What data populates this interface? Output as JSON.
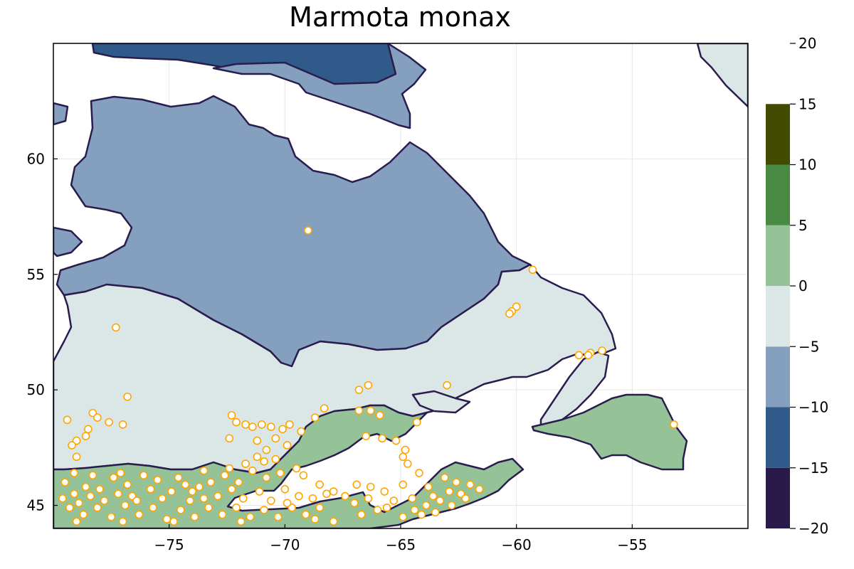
{
  "title": "Marmota monax",
  "x_ticks": [
    "−75",
    "−70",
    "−65",
    "−60",
    "−55"
  ],
  "y_ticks": [
    "45",
    "50",
    "55",
    "60"
  ],
  "colorbar": {
    "ticks": [
      "−20",
      "−15",
      "−10",
      "−5",
      "0",
      "5",
      "10",
      "15",
      "20"
    ],
    "bins": [
      {
        "range": [
          -20,
          -15
        ],
        "color": "#2a1a4a"
      },
      {
        "range": [
          -15,
          -10
        ],
        "color": "#2f5a8a"
      },
      {
        "range": [
          -10,
          -5
        ],
        "color": "#84a0be"
      },
      {
        "range": [
          -5,
          0
        ],
        "color": "#dbe6e6"
      },
      {
        "range": [
          0,
          5
        ],
        "color": "#96c298"
      },
      {
        "range": [
          5,
          10
        ],
        "color": "#488a42"
      },
      {
        "range": [
          10,
          15
        ],
        "color": "#424b00"
      }
    ]
  },
  "colors": {
    "outline": "#2a1d4e",
    "occurrence_stroke": "#ffa500",
    "occurrence_fill": "#ffffff",
    "band_-15_-10": "#2f5a8a",
    "band_-10_-5": "#84a0be",
    "band_-5_0": "#dbe6e6",
    "band_0_5": "#96c298"
  },
  "chart_data": {
    "type": "heatmap",
    "title": "Marmota monax",
    "xlabel": "",
    "ylabel": "",
    "xlim": [
      -80,
      -50
    ],
    "ylim": [
      44,
      65
    ],
    "x_ticks": [
      -75,
      -70,
      -65,
      -60,
      -55
    ],
    "y_ticks": [
      45,
      50,
      55,
      60
    ],
    "grid": true,
    "colorbar_range": [
      -20,
      20
    ],
    "colorbar_ticks": [
      -20,
      -15,
      -10,
      -5,
      0,
      5,
      10,
      15,
      20
    ],
    "occurrences": [
      [
        -69.0,
        56.9
      ],
      [
        -59.3,
        55.2
      ],
      [
        -60.0,
        53.6
      ],
      [
        -60.2,
        53.4
      ],
      [
        -60.3,
        53.3
      ],
      [
        -77.3,
        52.7
      ],
      [
        -76.8,
        49.7
      ],
      [
        -56.3,
        51.7
      ],
      [
        -56.8,
        51.6
      ],
      [
        -56.9,
        51.5
      ],
      [
        -57.3,
        51.5
      ],
      [
        -66.4,
        50.2
      ],
      [
        -66.8,
        50.0
      ],
      [
        -63.0,
        50.2
      ],
      [
        -53.2,
        48.5
      ],
      [
        -79.4,
        48.7
      ],
      [
        -78.3,
        49.0
      ],
      [
        -78.1,
        48.8
      ],
      [
        -77.6,
        48.6
      ],
      [
        -77.0,
        48.5
      ],
      [
        -78.5,
        48.3
      ],
      [
        -78.6,
        48.0
      ],
      [
        -79.0,
        47.8
      ],
      [
        -79.2,
        47.6
      ],
      [
        -79.0,
        47.1
      ],
      [
        -72.3,
        48.9
      ],
      [
        -72.1,
        48.6
      ],
      [
        -71.7,
        48.5
      ],
      [
        -71.4,
        48.4
      ],
      [
        -71.0,
        48.5
      ],
      [
        -70.6,
        48.4
      ],
      [
        -70.1,
        48.3
      ],
      [
        -69.8,
        48.5
      ],
      [
        -69.3,
        48.2
      ],
      [
        -68.7,
        48.8
      ],
      [
        -68.3,
        49.2
      ],
      [
        -66.8,
        49.1
      ],
      [
        -66.3,
        49.1
      ],
      [
        -65.9,
        48.9
      ],
      [
        -64.3,
        48.6
      ],
      [
        -72.4,
        47.9
      ],
      [
        -71.2,
        47.8
      ],
      [
        -70.4,
        47.9
      ],
      [
        -69.9,
        47.6
      ],
      [
        -70.8,
        47.4
      ],
      [
        -71.2,
        47.1
      ],
      [
        -70.4,
        47.0
      ],
      [
        -66.5,
        48.0
      ],
      [
        -65.8,
        47.9
      ],
      [
        -65.2,
        47.8
      ],
      [
        -64.8,
        47.4
      ],
      [
        -64.9,
        47.1
      ],
      [
        -64.7,
        46.8
      ],
      [
        -64.2,
        46.4
      ],
      [
        -63.1,
        46.2
      ],
      [
        -62.6,
        46.0
      ],
      [
        -62.0,
        45.9
      ],
      [
        -61.6,
        45.7
      ],
      [
        -62.4,
        45.5
      ],
      [
        -63.6,
        45.4
      ],
      [
        -64.5,
        45.3
      ],
      [
        -65.3,
        45.2
      ],
      [
        -66.4,
        45.3
      ],
      [
        -67.0,
        45.1
      ],
      [
        -66.0,
        44.8
      ],
      [
        -66.7,
        44.6
      ],
      [
        -64.9,
        44.5
      ],
      [
        -64.4,
        44.8
      ],
      [
        -63.9,
        45.0
      ],
      [
        -63.5,
        44.7
      ],
      [
        -62.8,
        45.0
      ],
      [
        -66.3,
        45.8
      ],
      [
        -67.4,
        45.4
      ],
      [
        -67.9,
        45.6
      ],
      [
        -68.5,
        45.9
      ],
      [
        -69.2,
        46.3
      ],
      [
        -69.5,
        46.6
      ],
      [
        -70.2,
        46.4
      ],
      [
        -70.8,
        46.2
      ],
      [
        -71.4,
        46.5
      ],
      [
        -72.0,
        46.0
      ],
      [
        -72.6,
        46.3
      ],
      [
        -73.2,
        46.0
      ],
      [
        -73.7,
        45.8
      ],
      [
        -74.3,
        45.9
      ],
      [
        -74.9,
        45.6
      ],
      [
        -75.5,
        46.1
      ],
      [
        -76.1,
        46.3
      ],
      [
        -76.8,
        45.9
      ],
      [
        -77.4,
        46.2
      ],
      [
        -78.0,
        45.7
      ],
      [
        -78.6,
        45.8
      ],
      [
        -79.1,
        45.5
      ],
      [
        -79.6,
        45.3
      ],
      [
        -79.3,
        44.9
      ],
      [
        -78.7,
        44.6
      ],
      [
        -78.1,
        44.9
      ],
      [
        -77.5,
        44.5
      ],
      [
        -76.9,
        45.0
      ],
      [
        -76.3,
        44.6
      ],
      [
        -75.7,
        44.9
      ],
      [
        -75.1,
        44.4
      ],
      [
        -74.5,
        44.8
      ],
      [
        -73.9,
        44.5
      ],
      [
        -73.3,
        44.9
      ],
      [
        -72.7,
        44.6
      ],
      [
        -72.1,
        44.9
      ],
      [
        -71.5,
        44.5
      ],
      [
        -70.9,
        44.8
      ],
      [
        -70.3,
        44.5
      ],
      [
        -69.7,
        44.9
      ],
      [
        -69.1,
        44.6
      ],
      [
        -68.5,
        44.9
      ],
      [
        -67.9,
        44.3
      ],
      [
        -73.5,
        45.3
      ],
      [
        -74.1,
        45.2
      ],
      [
        -72.9,
        45.4
      ],
      [
        -71.8,
        45.3
      ],
      [
        -70.6,
        45.2
      ],
      [
        -69.4,
        45.4
      ],
      [
        -68.8,
        45.3
      ],
      [
        -75.3,
        45.3
      ],
      [
        -76.6,
        45.4
      ],
      [
        -77.8,
        45.2
      ],
      [
        -78.9,
        45.1
      ],
      [
        -79.5,
        46.0
      ],
      [
        -79.1,
        46.4
      ],
      [
        -78.3,
        46.3
      ],
      [
        -77.1,
        46.4
      ],
      [
        -74.6,
        46.2
      ],
      [
        -73.5,
        46.5
      ],
      [
        -72.4,
        46.6
      ],
      [
        -71.7,
        46.8
      ],
      [
        -70.9,
        46.9
      ],
      [
        -70.0,
        45.7
      ],
      [
        -75.8,
        45.7
      ],
      [
        -76.4,
        45.2
      ],
      [
        -77.2,
        45.5
      ],
      [
        -78.4,
        45.4
      ],
      [
        -74.0,
        45.6
      ],
      [
        -72.3,
        45.7
      ],
      [
        -71.1,
        45.6
      ],
      [
        -69.9,
        45.1
      ],
      [
        -68.2,
        45.5
      ],
      [
        -66.9,
        45.9
      ],
      [
        -65.7,
        45.6
      ],
      [
        -64.9,
        45.9
      ],
      [
        -63.8,
        45.8
      ],
      [
        -62.9,
        45.6
      ],
      [
        -65.6,
        44.9
      ],
      [
        -64.1,
        44.6
      ],
      [
        -62.2,
        45.3
      ],
      [
        -63.3,
        45.2
      ],
      [
        -71.9,
        44.3
      ],
      [
        -74.8,
        44.3
      ],
      [
        -77.0,
        44.3
      ],
      [
        -79.0,
        44.3
      ],
      [
        -68.7,
        44.4
      ]
    ]
  }
}
